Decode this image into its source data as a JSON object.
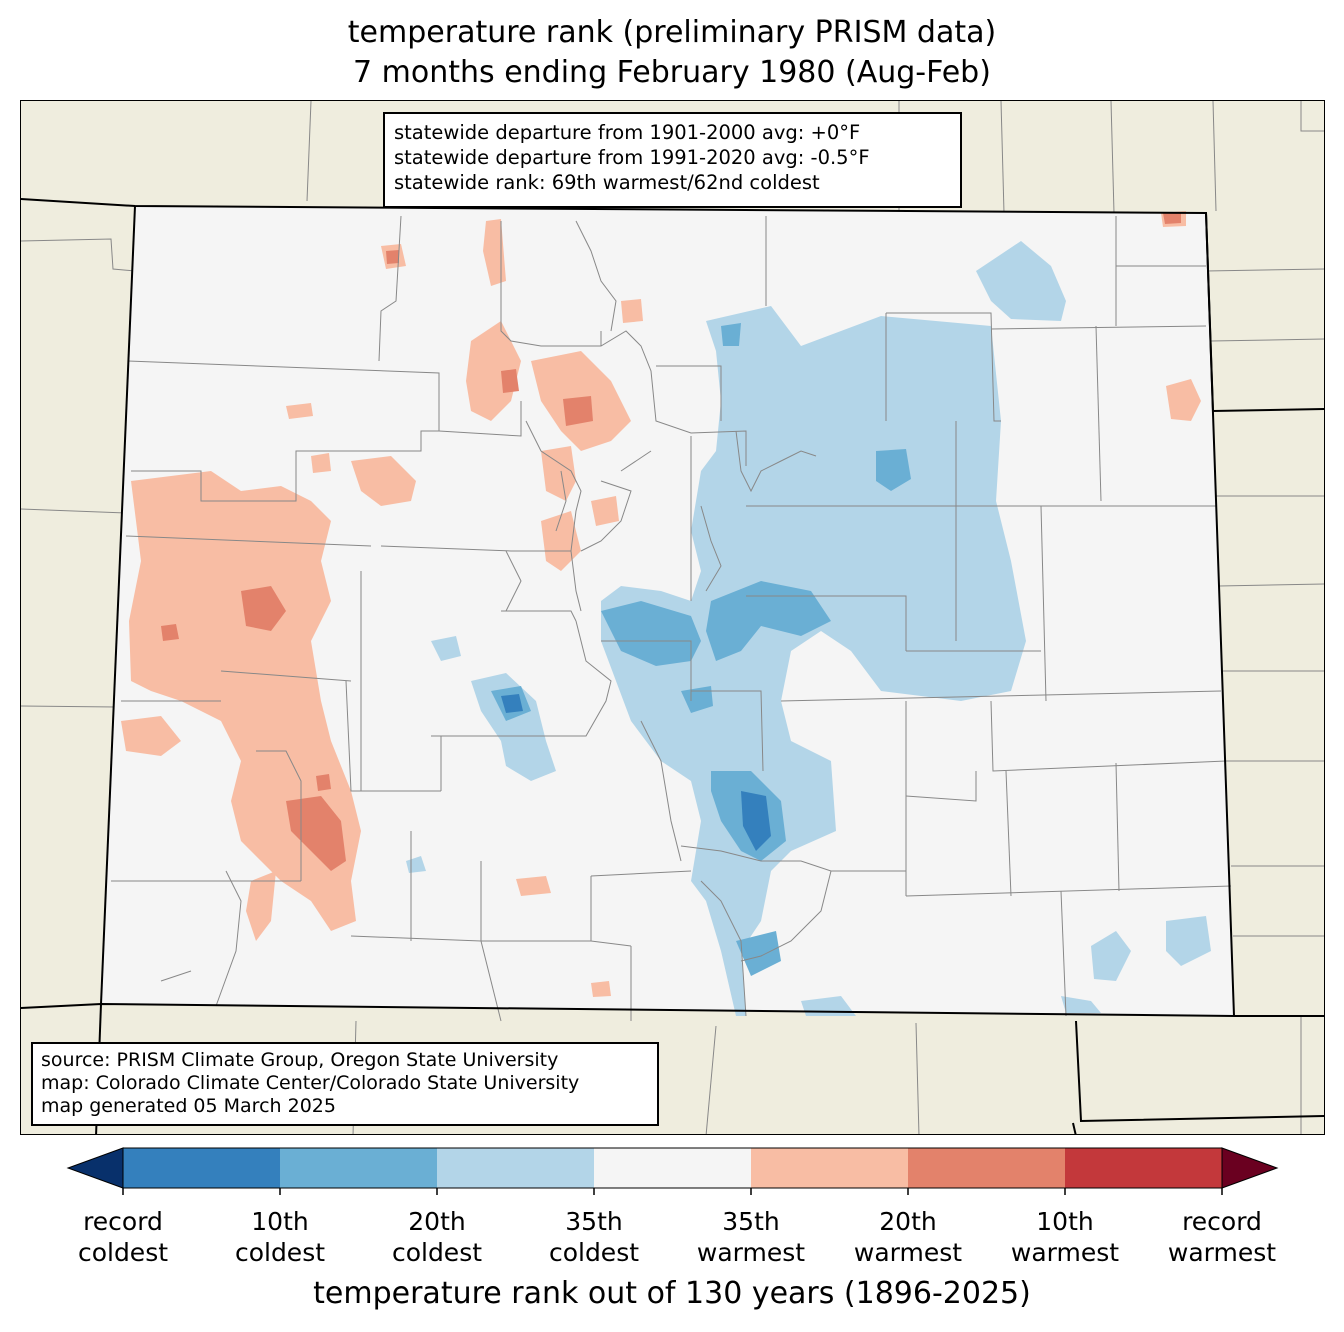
{
  "title": {
    "line1": "temperature rank (preliminary PRISM data)",
    "line2": "7 months ending February 1980 (Aug-Feb)"
  },
  "stats": {
    "line1": "statewide departure from 1901-2000 avg: +0°F",
    "line2": "statewide departure from 1991-2020 avg: -0.5°F",
    "line3": "statewide rank: 69th warmest/62nd coldest"
  },
  "source": {
    "line1": "source: PRISM Climate Group, Oregon State University",
    "line2": "map: Colorado Climate Center/Colorado State University",
    "line3": "map generated 05 March 2025"
  },
  "colorbar": {
    "label": "temperature rank out of 130 years (1896-2025)",
    "ticks": [
      {
        "line1": "record",
        "line2": "coldest"
      },
      {
        "line1": "10th",
        "line2": "coldest"
      },
      {
        "line1": "20th",
        "line2": "coldest"
      },
      {
        "line1": "35th",
        "line2": "coldest"
      },
      {
        "line1": "35th",
        "line2": "warmest"
      },
      {
        "line1": "20th",
        "line2": "warmest"
      },
      {
        "line1": "10th",
        "line2": "warmest"
      },
      {
        "line1": "record",
        "line2": "warmest"
      }
    ],
    "colors": [
      "#08306b",
      "#3480bd",
      "#6aafd4",
      "#b3d5e8",
      "#f5f5f5",
      "#f8bda4",
      "#e3826b",
      "#c3383b",
      "#6a0020"
    ]
  },
  "map_colors": {
    "background": "#efedde",
    "state_fill": "#f5f5f5",
    "border": "#000000",
    "county_lines": "#888888"
  }
}
